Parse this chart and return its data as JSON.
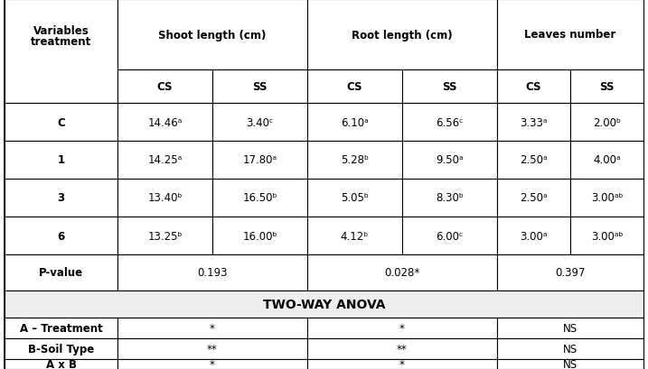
{
  "data_rows": [
    [
      "C",
      "14.46ᵃ",
      "3.40ᶜ",
      "6.10ᵃ",
      "6.56ᶜ",
      "3.33ᵃ",
      "2.00ᵇ"
    ],
    [
      "1",
      "14.25ᵃ",
      "17.80ᵃ",
      "5.28ᵇ",
      "9.50ᵃ",
      "2.50ᵃ",
      "4.00ᵃ"
    ],
    [
      "3",
      "13.40ᵇ",
      "16.50ᵇ",
      "5.05ᵇ",
      "8.30ᵇ",
      "2.50ᵃ",
      "3.00ᵃᵇ"
    ],
    [
      "6",
      "13.25ᵇ",
      "16.00ᵇ",
      "4.12ᵇ",
      "6.00ᶜ",
      "3.00ᵃ",
      "3.00ᵃᵇ"
    ]
  ],
  "pvalue": [
    "0.193",
    "0.028*",
    "0.397"
  ],
  "anova_title": "TWO-WAY ANOVA",
  "anova_rows": [
    [
      "A – Treatment",
      "*",
      "*",
      "NS"
    ],
    [
      "B-Soil Type",
      "**",
      "**",
      "NS"
    ],
    [
      "A x B",
      "*",
      "*",
      "NS"
    ]
  ],
  "text_color": "#000000",
  "anova_bg": "#eeeeee",
  "fontsize": 8.5
}
